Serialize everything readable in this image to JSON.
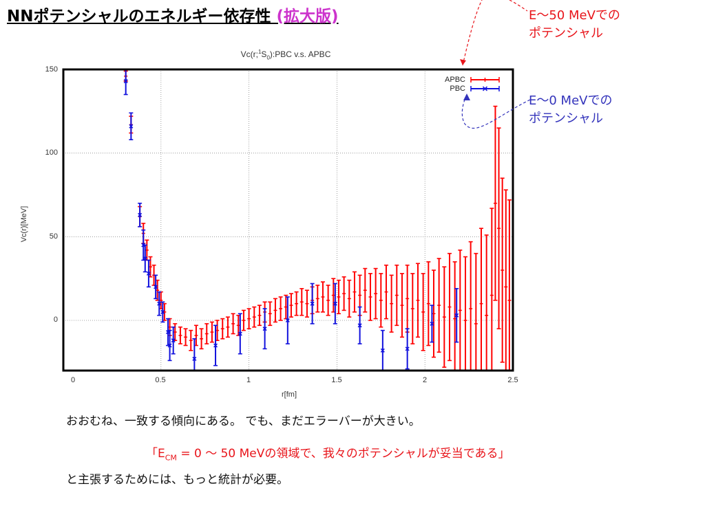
{
  "slide": {
    "title_main": "NNポテンシャルのエネルギー依存性",
    "title_link": "(拡大版)",
    "callout_red": [
      "E～50 MeVでの",
      "ポテンシャル"
    ],
    "callout_blue": [
      "E～0 MeVでの",
      "ポテンシャル"
    ],
    "line1": "おおむね、一致する傾向にある。 でも、まだエラーバーが大きい。",
    "line2_pre": "「E",
    "line2_sub": "CM",
    "line2_post": " = 0 ～ 50 MeVの領域で、我々のポテンシャルが妥当である」",
    "line3": "と主張するためには、もっと統計が必要。",
    "colors": {
      "apbc": "#ff0000",
      "pbc": "#1010dd",
      "callout_red": "#e8141a",
      "callout_blue": "#3333bb",
      "link": "#cc33cc"
    }
  },
  "chart_data": {
    "type": "scatter",
    "title_pre": "Vc(r;",
    "title_sup": "1",
    "title_mid": "S",
    "title_sub": "0",
    "title_post": "):PBC v.s. APBC",
    "xlabel": "r[fm]",
    "ylabel": "Vc(r)[MeV]",
    "xlim": [
      0,
      2.5
    ],
    "ylim": [
      -30,
      150
    ],
    "xticks": [
      "0",
      "0.5",
      "1",
      "1.5",
      "2",
      "2.5"
    ],
    "yticks": [
      "150",
      "100",
      "50",
      "0"
    ],
    "grid": true,
    "legend_position": "top-right",
    "series": [
      {
        "name": "APBC",
        "error_bars": true,
        "points": [
          {
            "x": 0.3,
            "y": 146,
            "err": 3
          },
          {
            "x": 0.33,
            "y": 117,
            "err": 5
          },
          {
            "x": 0.38,
            "y": 62,
            "err": 6
          },
          {
            "x": 0.4,
            "y": 52,
            "err": 6
          },
          {
            "x": 0.42,
            "y": 42,
            "err": 6
          },
          {
            "x": 0.44,
            "y": 32,
            "err": 6
          },
          {
            "x": 0.46,
            "y": 27,
            "err": 6
          },
          {
            "x": 0.48,
            "y": 18,
            "err": 6
          },
          {
            "x": 0.5,
            "y": 12,
            "err": 5
          },
          {
            "x": 0.52,
            "y": 5,
            "err": 5
          },
          {
            "x": 0.55,
            "y": -4,
            "err": 5
          },
          {
            "x": 0.58,
            "y": -7,
            "err": 5
          },
          {
            "x": 0.61,
            "y": -9,
            "err": 5
          },
          {
            "x": 0.64,
            "y": -10,
            "err": 5
          },
          {
            "x": 0.67,
            "y": -12,
            "err": 6
          },
          {
            "x": 0.7,
            "y": -9,
            "err": 6
          },
          {
            "x": 0.73,
            "y": -11,
            "err": 6
          },
          {
            "x": 0.76,
            "y": -8,
            "err": 6
          },
          {
            "x": 0.79,
            "y": -7,
            "err": 6
          },
          {
            "x": 0.82,
            "y": -6,
            "err": 6
          },
          {
            "x": 0.85,
            "y": -5,
            "err": 6
          },
          {
            "x": 0.88,
            "y": -4,
            "err": 6
          },
          {
            "x": 0.91,
            "y": -2,
            "err": 6
          },
          {
            "x": 0.94,
            "y": -3,
            "err": 6
          },
          {
            "x": 0.97,
            "y": 0,
            "err": 6
          },
          {
            "x": 1.0,
            "y": 1,
            "err": 6
          },
          {
            "x": 1.03,
            "y": 2,
            "err": 6
          },
          {
            "x": 1.06,
            "y": 3,
            "err": 6
          },
          {
            "x": 1.09,
            "y": 5,
            "err": 6
          },
          {
            "x": 1.12,
            "y": 4,
            "err": 7
          },
          {
            "x": 1.15,
            "y": 6,
            "err": 7
          },
          {
            "x": 1.18,
            "y": 7,
            "err": 7
          },
          {
            "x": 1.21,
            "y": 8,
            "err": 7
          },
          {
            "x": 1.24,
            "y": 9,
            "err": 7
          },
          {
            "x": 1.27,
            "y": 10,
            "err": 7
          },
          {
            "x": 1.3,
            "y": 11,
            "err": 8
          },
          {
            "x": 1.33,
            "y": 10,
            "err": 8
          },
          {
            "x": 1.36,
            "y": 12,
            "err": 8
          },
          {
            "x": 1.39,
            "y": 13,
            "err": 8
          },
          {
            "x": 1.42,
            "y": 14,
            "err": 9
          },
          {
            "x": 1.45,
            "y": 12,
            "err": 9
          },
          {
            "x": 1.48,
            "y": 15,
            "err": 10
          },
          {
            "x": 1.51,
            "y": 14,
            "err": 10
          },
          {
            "x": 1.54,
            "y": 16,
            "err": 10
          },
          {
            "x": 1.57,
            "y": 13,
            "err": 11
          },
          {
            "x": 1.6,
            "y": 17,
            "err": 12
          },
          {
            "x": 1.63,
            "y": 15,
            "err": 12
          },
          {
            "x": 1.66,
            "y": 18,
            "err": 13
          },
          {
            "x": 1.69,
            "y": 14,
            "err": 14
          },
          {
            "x": 1.72,
            "y": 16,
            "err": 15
          },
          {
            "x": 1.75,
            "y": 12,
            "err": 16
          },
          {
            "x": 1.78,
            "y": 17,
            "err": 16
          },
          {
            "x": 1.81,
            "y": 10,
            "err": 17
          },
          {
            "x": 1.84,
            "y": 15,
            "err": 18
          },
          {
            "x": 1.87,
            "y": 9,
            "err": 19
          },
          {
            "x": 1.9,
            "y": 13,
            "err": 20
          },
          {
            "x": 1.93,
            "y": 7,
            "err": 21
          },
          {
            "x": 1.96,
            "y": 12,
            "err": 22
          },
          {
            "x": 1.99,
            "y": 5,
            "err": 23
          },
          {
            "x": 2.02,
            "y": 10,
            "err": 25
          },
          {
            "x": 2.05,
            "y": 4,
            "err": 26
          },
          {
            "x": 2.08,
            "y": 9,
            "err": 28
          },
          {
            "x": 2.11,
            "y": 2,
            "err": 30
          },
          {
            "x": 2.14,
            "y": 8,
            "err": 32
          },
          {
            "x": 2.17,
            "y": 1,
            "err": 34
          },
          {
            "x": 2.2,
            "y": 6,
            "err": 36
          },
          {
            "x": 2.23,
            "y": 0,
            "err": 38
          },
          {
            "x": 2.26,
            "y": 7,
            "err": 40
          },
          {
            "x": 2.29,
            "y": -2,
            "err": 42
          },
          {
            "x": 2.32,
            "y": 10,
            "err": 45
          },
          {
            "x": 2.35,
            "y": 3,
            "err": 48
          },
          {
            "x": 2.38,
            "y": 15,
            "err": 52
          },
          {
            "x": 2.4,
            "y": 70,
            "err": 58
          },
          {
            "x": 2.42,
            "y": 55,
            "err": 60
          },
          {
            "x": 2.44,
            "y": 30,
            "err": 55
          },
          {
            "x": 2.46,
            "y": 20,
            "err": 58
          },
          {
            "x": 2.48,
            "y": 12,
            "err": 60
          }
        ]
      },
      {
        "name": "PBC",
        "error_bars": true,
        "points": [
          {
            "x": 0.3,
            "y": 143,
            "err": 8
          },
          {
            "x": 0.33,
            "y": 116,
            "err": 8
          },
          {
            "x": 0.38,
            "y": 63,
            "err": 7
          },
          {
            "x": 0.4,
            "y": 45,
            "err": 9
          },
          {
            "x": 0.41,
            "y": 37,
            "err": 8
          },
          {
            "x": 0.43,
            "y": 28,
            "err": 8
          },
          {
            "x": 0.47,
            "y": 20,
            "err": 7
          },
          {
            "x": 0.49,
            "y": 10,
            "err": 7
          },
          {
            "x": 0.51,
            "y": 5,
            "err": 6
          },
          {
            "x": 0.54,
            "y": -7,
            "err": 8
          },
          {
            "x": 0.55,
            "y": -15,
            "err": 9
          },
          {
            "x": 0.57,
            "y": -12,
            "err": 8
          },
          {
            "x": 0.69,
            "y": -23,
            "err": 12
          },
          {
            "x": 0.81,
            "y": -15,
            "err": 12
          },
          {
            "x": 0.95,
            "y": -8,
            "err": 12
          },
          {
            "x": 1.09,
            "y": -5,
            "err": 12
          },
          {
            "x": 1.22,
            "y": 0,
            "err": 14
          },
          {
            "x": 1.36,
            "y": 10,
            "err": 12
          },
          {
            "x": 1.49,
            "y": 10,
            "err": 12
          },
          {
            "x": 1.63,
            "y": -3,
            "err": 11
          },
          {
            "x": 1.76,
            "y": -18,
            "err": 12
          },
          {
            "x": 1.9,
            "y": -17,
            "err": 12
          },
          {
            "x": 2.04,
            "y": -2,
            "err": 11
          },
          {
            "x": 2.18,
            "y": 3,
            "err": 16
          }
        ]
      }
    ]
  }
}
